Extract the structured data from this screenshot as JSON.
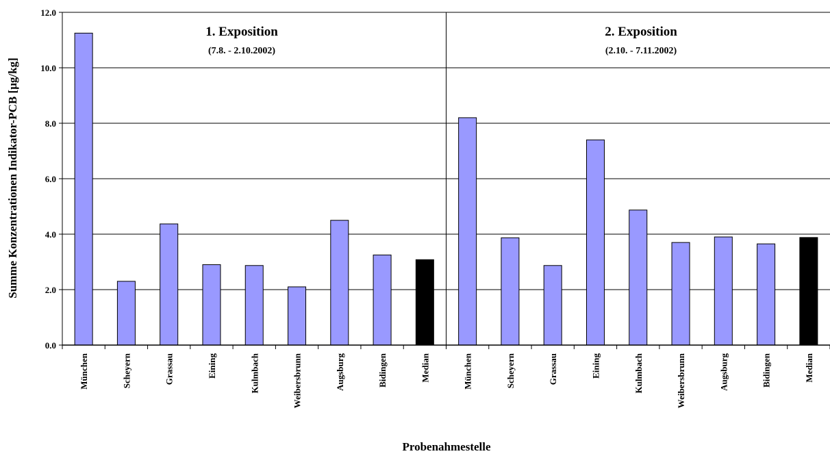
{
  "chart_data": {
    "type": "bar",
    "ylabel": "Summe Konzentrationen Indikator-PCB [µg/kg]",
    "xlabel": "Probenahmestelle",
    "ylim": [
      0,
      12
    ],
    "yticks": [
      "0.0",
      "2.0",
      "4.0",
      "6.0",
      "8.0",
      "10.0",
      "12.0"
    ],
    "grid": "horizontal",
    "colors": {
      "bar": "#9999ff",
      "median": "#000000"
    },
    "groups": [
      {
        "title": "1. Exposition",
        "subtitle": "(7.8. - 2.10.2002)",
        "categories": [
          "München",
          "Scheyern",
          "Grassau",
          "Eining",
          "Kulmbach",
          "Weibersbrunn",
          "Augsburg",
          "Bidingen",
          "Median"
        ],
        "values": [
          11.25,
          2.3,
          4.37,
          2.9,
          2.87,
          2.1,
          4.5,
          3.25,
          3.08
        ]
      },
      {
        "title": "2. Exposition",
        "subtitle": "(2.10. - 7.11.2002)",
        "categories": [
          "München",
          "Scheyern",
          "Grassau",
          "Eining",
          "Kulmbach",
          "Weibersbrunn",
          "Augsburg",
          "Bidingen",
          "Median"
        ],
        "values": [
          8.2,
          3.87,
          2.87,
          7.4,
          4.87,
          3.7,
          3.9,
          3.65,
          3.88
        ]
      }
    ]
  }
}
